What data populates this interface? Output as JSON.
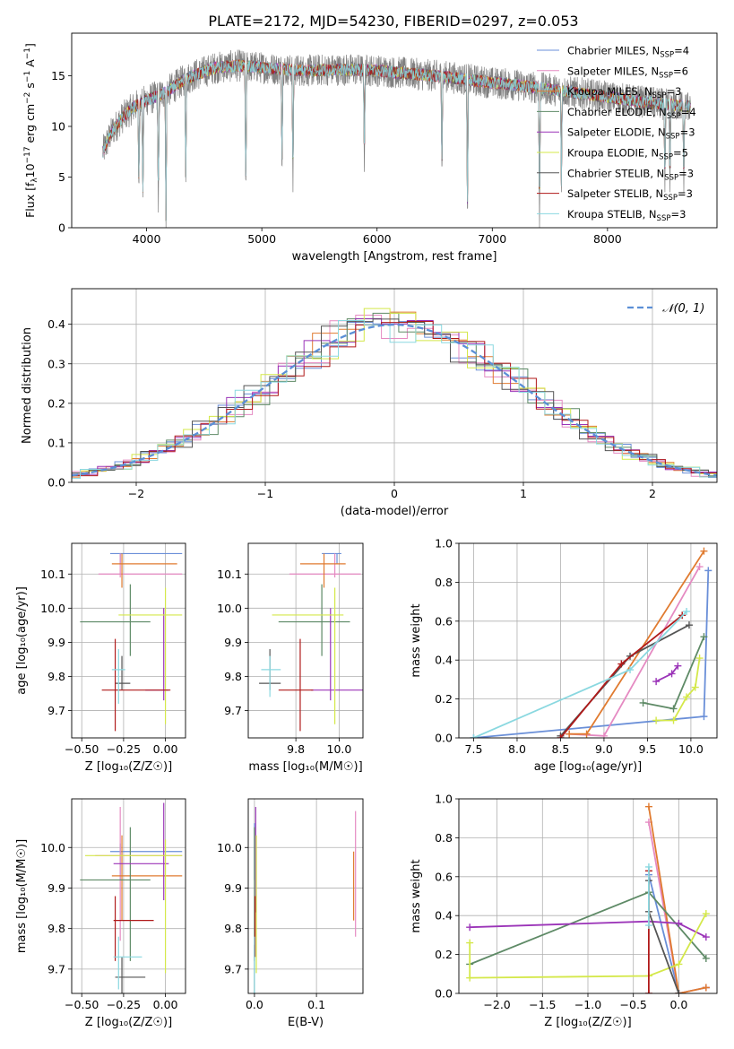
{
  "figure": {
    "title": "PLATE=2172, MJD=54230, FIBERID=0297, z=0.053"
  },
  "series": [
    {
      "name": "Chabrier MILES, N",
      "n": "4",
      "color": "#6a8fd8"
    },
    {
      "name": "Salpeter MILES, N",
      "n": "6",
      "color": "#e58ac2"
    },
    {
      "name": "Kroupa MILES, N",
      "n": "3",
      "color": "#e07b30"
    },
    {
      "name": "Chabrier ELODIE, N",
      "n": "4",
      "color": "#5e8a66"
    },
    {
      "name": "Salpeter ELODIE, N",
      "n": "3",
      "color": "#9b34b8"
    },
    {
      "name": "Kroupa ELODIE, N",
      "n": "5",
      "color": "#d4e84a"
    },
    {
      "name": "Chabrier STELIB, N",
      "n": "3",
      "color": "#555555"
    },
    {
      "name": "Salpeter STELIB, N",
      "n": "3",
      "color": "#b01a1a"
    },
    {
      "name": "Kroupa STELIB, N",
      "n": "3",
      "color": "#8ad8e0"
    }
  ],
  "legend_sub": "SSP",
  "chart_data": [
    {
      "id": "spectrum",
      "type": "line",
      "xlabel": "wavelength [Angstrom, rest frame]",
      "ylabel": "Flux [f",
      "xlim": [
        3350,
        8950
      ],
      "ylim": [
        0,
        19.2
      ],
      "xticks": [
        4000,
        5000,
        6000,
        7000,
        8000
      ],
      "yticks": [
        0,
        5,
        10,
        15
      ],
      "data_color": "#808080",
      "continuum": [
        [
          3620,
          7.5
        ],
        [
          3700,
          9.5
        ],
        [
          3800,
          11.0
        ],
        [
          3900,
          12.0
        ],
        [
          4000,
          12.6
        ],
        [
          4100,
          13.0
        ],
        [
          4200,
          13.6
        ],
        [
          4300,
          14.4
        ],
        [
          4400,
          15.0
        ],
        [
          4500,
          15.4
        ],
        [
          4600,
          15.8
        ],
        [
          4700,
          15.9
        ],
        [
          4800,
          16.0
        ],
        [
          5000,
          15.8
        ],
        [
          5200,
          15.6
        ],
        [
          5400,
          15.5
        ],
        [
          5600,
          15.6
        ],
        [
          5800,
          15.6
        ],
        [
          6000,
          15.5
        ],
        [
          6200,
          15.3
        ],
        [
          6400,
          15.1
        ],
        [
          6600,
          14.9
        ],
        [
          6800,
          14.6
        ],
        [
          7000,
          14.3
        ],
        [
          7200,
          14.1
        ],
        [
          7400,
          13.8
        ],
        [
          7600,
          13.5
        ],
        [
          7800,
          13.2
        ],
        [
          8000,
          12.9
        ],
        [
          8200,
          12.6
        ],
        [
          8400,
          12.3
        ],
        [
          8600,
          12.1
        ],
        [
          8720,
          12.0
        ]
      ],
      "dips": [
        [
          3933,
          3.5
        ],
        [
          3968,
          3.0
        ],
        [
          4102,
          1.5
        ],
        [
          4168,
          0.0
        ],
        [
          4340,
          4.5
        ],
        [
          4861,
          3.0
        ],
        [
          5175,
          5.0
        ],
        [
          5270,
          3.5
        ],
        [
          5890,
          5.5
        ],
        [
          6563,
          5.0
        ],
        [
          6785,
          0.0
        ],
        [
          7410,
          0.0
        ],
        [
          7600,
          3.5
        ],
        [
          8498,
          3.5
        ],
        [
          8542,
          3.5
        ],
        [
          8662,
          3.5
        ]
      ]
    },
    {
      "id": "residuals",
      "type": "histogram",
      "xlabel": "(data-model)/error",
      "ylabel": "Normed distribution",
      "xlim": [
        -2.5,
        2.5
      ],
      "ylim": [
        0,
        0.49
      ],
      "xticks": [
        -2,
        -1,
        0,
        1,
        2
      ],
      "yticks": [
        0.0,
        0.1,
        0.2,
        0.3,
        0.4
      ],
      "legend": "𝒩(0, 1)",
      "gaussian": {
        "mu": 0,
        "sigma": 1,
        "color": "#5b8fd6"
      }
    },
    {
      "id": "age-vs-Z",
      "type": "errorbar",
      "xlabel": "Z [log₁₀(Z/Z☉)]",
      "ylabel": "age  [log₁₀(age/yr)]",
      "xlim": [
        -0.56,
        0.12
      ],
      "ylim": [
        9.62,
        10.19
      ],
      "xticks": [
        -0.5,
        -0.25,
        0.0
      ],
      "xticklabels": [
        "−0.50",
        "−0.25",
        "0.00"
      ],
      "yticks": [
        9.7,
        9.8,
        9.9,
        10.0,
        10.1
      ],
      "yticklabels": [
        "9.7",
        "9.8",
        "9.9",
        "10.0",
        "10.1"
      ],
      "points": [
        {
          "s": 0,
          "x": -0.27,
          "y": 10.16,
          "x0": -0.33,
          "x1": 0.1,
          "y0": 10.13,
          "y1": 10.16
        },
        {
          "s": 1,
          "x": -0.27,
          "y": 10.1,
          "x0": -0.4,
          "x1": 0.1,
          "y0": 10.09,
          "y1": 10.16
        },
        {
          "s": 2,
          "x": -0.26,
          "y": 10.13,
          "x0": -0.32,
          "x1": 0.07,
          "y0": 10.06,
          "y1": 10.16
        },
        {
          "s": 3,
          "x": -0.21,
          "y": 9.96,
          "x0": -0.51,
          "x1": -0.09,
          "y0": 9.86,
          "y1": 10.07
        },
        {
          "s": 4,
          "x": -0.01,
          "y": 9.76,
          "x0": -0.12,
          "x1": 0.02,
          "y0": 9.73,
          "y1": 10.0
        },
        {
          "s": 5,
          "x": 0.0,
          "y": 9.98,
          "x0": -0.28,
          "x1": 0.1,
          "y0": 9.66,
          "y1": 10.06
        },
        {
          "s": 6,
          "x": -0.26,
          "y": 9.78,
          "x0": -0.3,
          "x1": -0.21,
          "y0": 9.76,
          "y1": 9.86
        },
        {
          "s": 7,
          "x": -0.3,
          "y": 9.76,
          "x0": -0.38,
          "x1": 0.03,
          "y0": 9.64,
          "y1": 9.91
        },
        {
          "s": 8,
          "x": -0.28,
          "y": 9.82,
          "x0": -0.32,
          "x1": -0.24,
          "y0": 9.72,
          "y1": 9.88
        }
      ]
    },
    {
      "id": "age-vs-mass",
      "type": "errorbar",
      "xlabel": "mass [log₁₀(M/M☉)]",
      "ylabel": "",
      "xlim": [
        9.58,
        10.11
      ],
      "ylim": [
        9.62,
        10.19
      ],
      "xticks": [
        9.8,
        10.0
      ],
      "xticklabels": [
        "9.8",
        "10.0"
      ],
      "yticks": [
        9.7,
        9.8,
        9.9,
        10.0,
        10.1
      ],
      "yticklabels": [
        "9.7",
        "9.8",
        "9.9",
        "10.0",
        "10.1"
      ],
      "points": [
        {
          "s": 0,
          "x": 9.99,
          "y": 10.16,
          "x0": 9.92,
          "x1": 10.01,
          "y0": 10.13,
          "y1": 10.16
        },
        {
          "s": 1,
          "x": 9.98,
          "y": 10.1,
          "x0": 9.77,
          "x1": 10.1,
          "y0": 10.09,
          "y1": 10.16
        },
        {
          "s": 2,
          "x": 9.93,
          "y": 10.13,
          "x0": 9.82,
          "x1": 10.03,
          "y0": 10.06,
          "y1": 10.16
        },
        {
          "s": 3,
          "x": 9.92,
          "y": 9.96,
          "x0": 9.72,
          "x1": 10.05,
          "y0": 9.86,
          "y1": 10.07
        },
        {
          "s": 4,
          "x": 9.96,
          "y": 9.76,
          "x0": 9.87,
          "x1": 10.11,
          "y0": 9.73,
          "y1": 10.0
        },
        {
          "s": 5,
          "x": 9.98,
          "y": 9.98,
          "x0": 9.69,
          "x1": 10.02,
          "y0": 9.66,
          "y1": 10.06
        },
        {
          "s": 6,
          "x": 9.68,
          "y": 9.78,
          "x0": 9.63,
          "x1": 9.73,
          "y0": 9.76,
          "y1": 9.88
        },
        {
          "s": 7,
          "x": 9.82,
          "y": 9.76,
          "x0": 9.72,
          "x1": 9.88,
          "y0": 9.64,
          "y1": 9.91
        },
        {
          "s": 8,
          "x": 9.68,
          "y": 9.82,
          "x0": 9.64,
          "x1": 9.73,
          "y0": 9.74,
          "y1": 9.86
        }
      ]
    },
    {
      "id": "mass-weight-vs-age",
      "type": "line",
      "xlabel": "age  [log₁₀(age/yr)]",
      "ylabel": "mass weight",
      "xlim": [
        7.33,
        10.3
      ],
      "ylim": [
        0,
        1.0
      ],
      "xticks": [
        7.5,
        8.0,
        8.5,
        9.0,
        9.5,
        10.0
      ],
      "xticklabels": [
        "7.5",
        "8.0",
        "8.5",
        "9.0",
        "9.5",
        "10.0"
      ],
      "yticks": [
        0.0,
        0.2,
        0.4,
        0.6,
        0.8,
        1.0
      ],
      "yticklabels": [
        "0.0",
        "0.2",
        "0.4",
        "0.6",
        "0.8",
        "1.0"
      ],
      "lines": [
        {
          "s": 0,
          "pts": [
            [
              7.5,
              0.0
            ],
            [
              10.15,
              0.11
            ],
            [
              10.2,
              0.86
            ]
          ]
        },
        {
          "s": 1,
          "pts": [
            [
              8.6,
              0.02
            ],
            [
              9.0,
              0.01
            ],
            [
              10.1,
              0.88
            ]
          ]
        },
        {
          "s": 2,
          "pts": [
            [
              8.6,
              0.02
            ],
            [
              8.8,
              0.02
            ],
            [
              10.15,
              0.96
            ]
          ]
        },
        {
          "s": 3,
          "pts": [
            [
              9.45,
              0.18
            ],
            [
              9.8,
              0.15
            ],
            [
              10.15,
              0.52
            ]
          ]
        },
        {
          "s": 4,
          "pts": [
            [
              9.6,
              0.29
            ],
            [
              9.78,
              0.33
            ],
            [
              9.85,
              0.37
            ]
          ]
        },
        {
          "s": 5,
          "pts": [
            [
              9.6,
              0.09
            ],
            [
              9.8,
              0.09
            ],
            [
              9.95,
              0.21
            ],
            [
              10.05,
              0.26
            ],
            [
              10.1,
              0.41
            ]
          ]
        },
        {
          "s": 6,
          "pts": [
            [
              8.5,
              0.01
            ],
            [
              9.3,
              0.42
            ],
            [
              9.98,
              0.58
            ]
          ]
        },
        {
          "s": 7,
          "pts": [
            [
              8.5,
              0.0
            ],
            [
              9.2,
              0.38
            ],
            [
              9.9,
              0.63
            ]
          ]
        },
        {
          "s": 8,
          "pts": [
            [
              7.5,
              0.0
            ],
            [
              9.3,
              0.35
            ],
            [
              9.95,
              0.65
            ]
          ]
        }
      ]
    },
    {
      "id": "mass-vs-Z",
      "type": "errorbar",
      "xlabel": "Z [log₁₀(Z/Z☉)]",
      "ylabel": "mass [log₁₀(M/M☉)]",
      "xlim": [
        -0.56,
        0.12
      ],
      "ylim": [
        9.64,
        10.12
      ],
      "xticks": [
        -0.5,
        -0.25,
        0.0
      ],
      "xticklabels": [
        "−0.50",
        "−0.25",
        "0.00"
      ],
      "yticks": [
        9.7,
        9.8,
        9.9,
        10.0
      ],
      "yticklabels": [
        "9.7",
        "9.8",
        "9.9",
        "10.0"
      ],
      "points": [
        {
          "s": 0,
          "x": -0.27,
          "y": 9.99,
          "x0": -0.33,
          "x1": 0.1,
          "y0": 9.92,
          "y1": 10.01
        },
        {
          "s": 1,
          "x": -0.27,
          "y": 9.98,
          "x0": -0.42,
          "x1": 0.1,
          "y0": 9.77,
          "y1": 10.1
        },
        {
          "s": 2,
          "x": -0.26,
          "y": 9.93,
          "x0": -0.32,
          "x1": 0.1,
          "y0": 9.82,
          "y1": 10.03
        },
        {
          "s": 3,
          "x": -0.21,
          "y": 9.92,
          "x0": -0.51,
          "x1": -0.09,
          "y0": 9.72,
          "y1": 10.05
        },
        {
          "s": 4,
          "x": -0.01,
          "y": 9.96,
          "x0": -0.31,
          "x1": 0.02,
          "y0": 9.87,
          "y1": 10.11
        },
        {
          "s": 5,
          "x": 0.0,
          "y": 9.98,
          "x0": -0.48,
          "x1": 0.1,
          "y0": 9.69,
          "y1": 10.02
        },
        {
          "s": 6,
          "x": -0.26,
          "y": 9.68,
          "x0": -0.3,
          "x1": -0.12,
          "y0": 9.63,
          "y1": 9.73
        },
        {
          "s": 7,
          "x": -0.3,
          "y": 9.82,
          "x0": -0.31,
          "x1": -0.07,
          "y0": 9.72,
          "y1": 9.88
        },
        {
          "s": 8,
          "x": -0.28,
          "y": 9.73,
          "x0": -0.31,
          "x1": -0.14,
          "y0": 9.65,
          "y1": 9.78
        }
      ]
    },
    {
      "id": "mass-vs-EBV",
      "type": "errorbar",
      "xlabel": "E(B-V)",
      "ylabel": "",
      "xlim": [
        -0.01,
        0.175
      ],
      "ylim": [
        9.64,
        10.12
      ],
      "xticks": [
        0.0,
        0.1
      ],
      "xticklabels": [
        "0.0",
        "0.1"
      ],
      "yticks": [
        9.7,
        9.8,
        9.9,
        10.0
      ],
      "yticklabels": [
        "9.7",
        "9.8",
        "9.9",
        "10.0"
      ],
      "points": [
        {
          "s": 0,
          "x": 0.0,
          "y": 9.99,
          "x0": 0.0,
          "x1": 0.0,
          "y0": 9.92,
          "y1": 10.06
        },
        {
          "s": 1,
          "x": 0.163,
          "y": 9.98,
          "x0": 0.163,
          "x1": 0.163,
          "y0": 9.78,
          "y1": 10.09
        },
        {
          "s": 2,
          "x": 0.16,
          "y": 9.93,
          "x0": 0.16,
          "x1": 0.16,
          "y0": 9.82,
          "y1": 9.99
        },
        {
          "s": 3,
          "x": 0.0,
          "y": 9.92,
          "x0": 0.0,
          "x1": 0.0,
          "y0": 9.72,
          "y1": 10.05
        },
        {
          "s": 4,
          "x": 0.002,
          "y": 9.96,
          "x0": 0.002,
          "x1": 0.002,
          "y0": 9.84,
          "y1": 10.1
        },
        {
          "s": 5,
          "x": 0.003,
          "y": 9.98,
          "x0": 0.003,
          "x1": 0.003,
          "y0": 9.69,
          "y1": 10.03
        },
        {
          "s": 6,
          "x": 0.0,
          "y": 9.68,
          "x0": 0.0,
          "x1": 0.0,
          "y0": 9.64,
          "y1": 9.76
        },
        {
          "s": 7,
          "x": 0.001,
          "y": 9.82,
          "x0": 0.001,
          "x1": 0.001,
          "y0": 9.73,
          "y1": 9.88
        },
        {
          "s": 8,
          "x": 0.0,
          "y": 9.73,
          "x0": 0.0,
          "x1": 0.0,
          "y0": 9.64,
          "y1": 9.78
        }
      ]
    },
    {
      "id": "mass-weight-vs-Z",
      "type": "line",
      "xlabel": "Z [log₁₀(Z/Z☉)]",
      "ylabel": "mass weight",
      "xlim": [
        -2.42,
        0.42
      ],
      "ylim": [
        0,
        1.0
      ],
      "xticks": [
        -2.0,
        -1.5,
        -1.0,
        -0.5,
        0.0
      ],
      "xticklabels": [
        "−2.0",
        "−1.5",
        "−1.0",
        "−0.5",
        "0.0"
      ],
      "yticks": [
        0.0,
        0.2,
        0.4,
        0.6,
        0.8,
        1.0
      ],
      "yticklabels": [
        "0.0",
        "0.2",
        "0.4",
        "0.6",
        "0.8",
        "1.0"
      ],
      "lines": [
        {
          "s": 0,
          "pts": [
            [
              -0.33,
              0.61
            ],
            [
              0.0,
              0.0
            ],
            [
              0.3,
              0.03
            ]
          ]
        },
        {
          "s": 1,
          "pts": [
            [
              -0.33,
              0.88
            ],
            [
              0.0,
              0.0
            ],
            [
              0.3,
              0.03
            ]
          ]
        },
        {
          "s": 2,
          "pts": [
            [
              -0.33,
              0.96
            ],
            [
              0.0,
              0.0
            ],
            [
              0.3,
              0.03
            ]
          ]
        },
        {
          "s": 3,
          "pts": [
            [
              -2.3,
              0.15
            ],
            [
              -0.33,
              0.52
            ],
            [
              0.3,
              0.18
            ]
          ]
        },
        {
          "s": 4,
          "pts": [
            [
              -2.3,
              0.34
            ],
            [
              -0.33,
              0.37
            ],
            [
              0.0,
              0.36
            ],
            [
              0.3,
              0.29
            ]
          ]
        },
        {
          "s": 5,
          "pts": [
            [
              -2.3,
              0.26
            ],
            [
              -2.3,
              0.08
            ],
            [
              -0.33,
              0.09
            ],
            [
              0.0,
              0.15
            ],
            [
              0.3,
              0.41
            ]
          ]
        },
        {
          "s": 6,
          "pts": [
            [
              -0.33,
              0.58
            ],
            [
              -0.33,
              0.42
            ],
            [
              0.0,
              0.0
            ]
          ]
        },
        {
          "s": 7,
          "pts": [
            [
              -0.33,
              0.63
            ],
            [
              -0.33,
              0.0
            ]
          ]
        },
        {
          "s": 8,
          "pts": [
            [
              -0.33,
              0.65
            ],
            [
              -0.33,
              0.35
            ]
          ]
        }
      ]
    }
  ]
}
